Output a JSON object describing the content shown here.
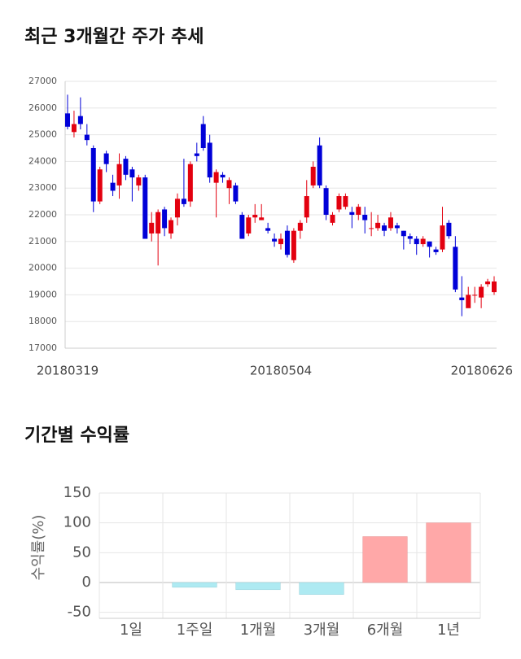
{
  "chart_data": [
    {
      "type": "candlestick",
      "title": "최근 3개월간 주가 추세",
      "categories": [
        "20180319",
        null,
        null,
        null,
        null,
        null,
        null,
        null,
        null,
        null,
        null,
        null,
        null,
        null,
        null,
        null,
        null,
        null,
        null,
        null,
        null,
        null,
        null,
        null,
        null,
        null,
        null,
        null,
        null,
        null,
        null,
        null,
        null,
        "20180504",
        null,
        null,
        null,
        null,
        null,
        null,
        null,
        null,
        null,
        null,
        null,
        null,
        null,
        null,
        null,
        null,
        null,
        null,
        null,
        null,
        null,
        null,
        null,
        null,
        null,
        null,
        null,
        null,
        null,
        null,
        null,
        null,
        "20180626"
      ],
      "open": [
        25800,
        25100,
        25700,
        25000,
        24500,
        22500,
        24300,
        23200,
        23100,
        24100,
        23700,
        23100,
        23400,
        21300,
        21300,
        22200,
        21300,
        21900,
        22600,
        22500,
        24300,
        25400,
        24700,
        23200,
        23500,
        23000,
        23100,
        22000,
        21300,
        21900,
        21800,
        21500,
        21100,
        20900,
        21400,
        20300,
        21400,
        21900,
        23100,
        24600,
        23000,
        21700,
        22200,
        22300,
        22100,
        22000,
        22000,
        21500,
        21500,
        21600,
        21500,
        21600,
        21400,
        21200,
        21100,
        20900,
        21000,
        20700,
        20700,
        21700,
        20800,
        18900,
        18500,
        19000,
        18900,
        19400,
        19100
      ],
      "high": [
        26500,
        25900,
        26400,
        25400,
        24600,
        23800,
        24400,
        23500,
        24300,
        24200,
        23800,
        23500,
        23500,
        22100,
        22200,
        22300,
        21900,
        22800,
        24100,
        24000,
        24700,
        25700,
        25000,
        23700,
        23600,
        23400,
        23200,
        22100,
        22000,
        22400,
        22400,
        21700,
        21300,
        21300,
        21600,
        21500,
        21800,
        23300,
        24000,
        24900,
        23100,
        22100,
        22800,
        22800,
        22300,
        22400,
        22300,
        22100,
        22000,
        21700,
        22100,
        21700,
        21400,
        21300,
        21200,
        21200,
        21000,
        20800,
        22300,
        21800,
        21200,
        19700,
        19300,
        19300,
        19400,
        19600,
        19700
      ],
      "low": [
        25200,
        24900,
        25200,
        24600,
        22100,
        22400,
        23600,
        22700,
        22600,
        23300,
        22500,
        22900,
        21100,
        21000,
        20100,
        21200,
        21100,
        21600,
        22300,
        22300,
        24000,
        24400,
        23200,
        21900,
        23200,
        22400,
        22400,
        21100,
        21200,
        21700,
        21800,
        21300,
        20800,
        20700,
        20400,
        20200,
        21100,
        21700,
        23000,
        23000,
        21800,
        21600,
        22100,
        22200,
        21500,
        21800,
        21300,
        21200,
        21400,
        21200,
        21400,
        21300,
        20700,
        20900,
        20500,
        20800,
        20400,
        20500,
        20600,
        21100,
        19100,
        18200,
        18600,
        18700,
        18500,
        19300,
        19000
      ],
      "close": [
        25300,
        25400,
        25400,
        24800,
        22500,
        23700,
        23900,
        22900,
        23900,
        23500,
        23400,
        23400,
        21100,
        21700,
        22100,
        21500,
        21800,
        22600,
        22400,
        23900,
        24200,
        24500,
        23400,
        23600,
        23400,
        23300,
        22500,
        21100,
        21900,
        22000,
        21900,
        21400,
        21000,
        21100,
        20500,
        21400,
        21700,
        22700,
        23800,
        23100,
        22000,
        22000,
        22700,
        22700,
        22000,
        22300,
        21800,
        21500,
        21700,
        21400,
        21900,
        21500,
        21200,
        21100,
        20900,
        21100,
        20800,
        20600,
        21600,
        21200,
        19200,
        18800,
        19000,
        19000,
        19300,
        19500,
        19500
      ],
      "up_color": "#e3000f",
      "down_color": "#0000d8",
      "ylim": [
        17000,
        27000
      ],
      "yticks": [
        17000,
        18000,
        19000,
        20000,
        21000,
        22000,
        23000,
        24000,
        25000,
        26000,
        27000
      ],
      "grid": true
    },
    {
      "type": "bar",
      "title": "기간별 수익률",
      "y_label": "수익률(%)",
      "categories": [
        "1일",
        "1주일",
        "1개월",
        "3개월",
        "6개월",
        "1년"
      ],
      "values": [
        0,
        -8,
        -12,
        -20,
        77,
        100
      ],
      "positive_color": "#ffa8a8",
      "negative_color": "#aeeaf2",
      "ylim": [
        -60,
        150
      ],
      "yticks": [
        -50,
        0,
        50,
        100,
        150
      ],
      "grid": true
    }
  ]
}
